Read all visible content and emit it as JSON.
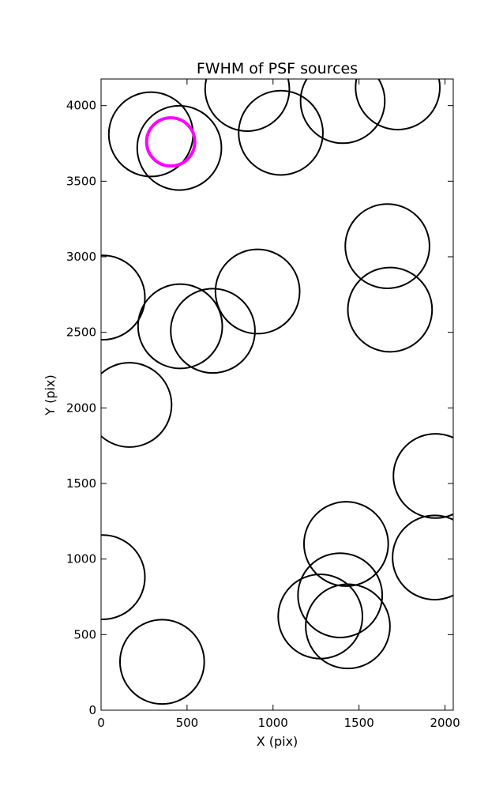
{
  "chart_data": {
    "type": "scatter",
    "title": "FWHM of PSF sources",
    "xlabel": "X (pix)",
    "ylabel": "Y (pix)",
    "xlim": [
      0,
      2048
    ],
    "ylim": [
      0,
      4176
    ],
    "xticks": [
      0,
      500,
      1000,
      1500,
      2000
    ],
    "yticks": [
      0,
      500,
      1000,
      1500,
      2000,
      2500,
      3000,
      3500,
      4000
    ],
    "grid": false,
    "legend": "none",
    "marker": "open-circle",
    "colors": {
      "default": "#000000",
      "highlight": "#ff00ff"
    },
    "points": [
      {
        "x": 290,
        "y": 3810,
        "r": 245,
        "highlight": false
      },
      {
        "x": 455,
        "y": 3720,
        "r": 245,
        "highlight": false
      },
      {
        "x": 405,
        "y": 3760,
        "r": 140,
        "highlight": true
      },
      {
        "x": 850,
        "y": 4110,
        "r": 245,
        "highlight": false
      },
      {
        "x": 1045,
        "y": 3820,
        "r": 245,
        "highlight": false
      },
      {
        "x": 1405,
        "y": 4030,
        "r": 245,
        "highlight": false
      },
      {
        "x": 1725,
        "y": 4120,
        "r": 245,
        "highlight": false
      },
      {
        "x": 1665,
        "y": 3070,
        "r": 245,
        "highlight": false
      },
      {
        "x": 1680,
        "y": 2650,
        "r": 245,
        "highlight": false
      },
      {
        "x": 910,
        "y": 2770,
        "r": 245,
        "highlight": false
      },
      {
        "x": 460,
        "y": 2540,
        "r": 245,
        "highlight": false
      },
      {
        "x": 650,
        "y": 2510,
        "r": 245,
        "highlight": false
      },
      {
        "x": 10,
        "y": 2730,
        "r": 245,
        "highlight": false
      },
      {
        "x": 165,
        "y": 2020,
        "r": 245,
        "highlight": false
      },
      {
        "x": 1945,
        "y": 1550,
        "r": 245,
        "highlight": false
      },
      {
        "x": 1425,
        "y": 1100,
        "r": 245,
        "highlight": false
      },
      {
        "x": 1940,
        "y": 1010,
        "r": 245,
        "highlight": false
      },
      {
        "x": 1390,
        "y": 760,
        "r": 245,
        "highlight": false
      },
      {
        "x": 1275,
        "y": 620,
        "r": 245,
        "highlight": false
      },
      {
        "x": 1435,
        "y": 555,
        "r": 245,
        "highlight": false
      },
      {
        "x": 10,
        "y": 880,
        "r": 245,
        "highlight": false
      },
      {
        "x": 355,
        "y": 320,
        "r": 245,
        "highlight": false
      }
    ]
  }
}
